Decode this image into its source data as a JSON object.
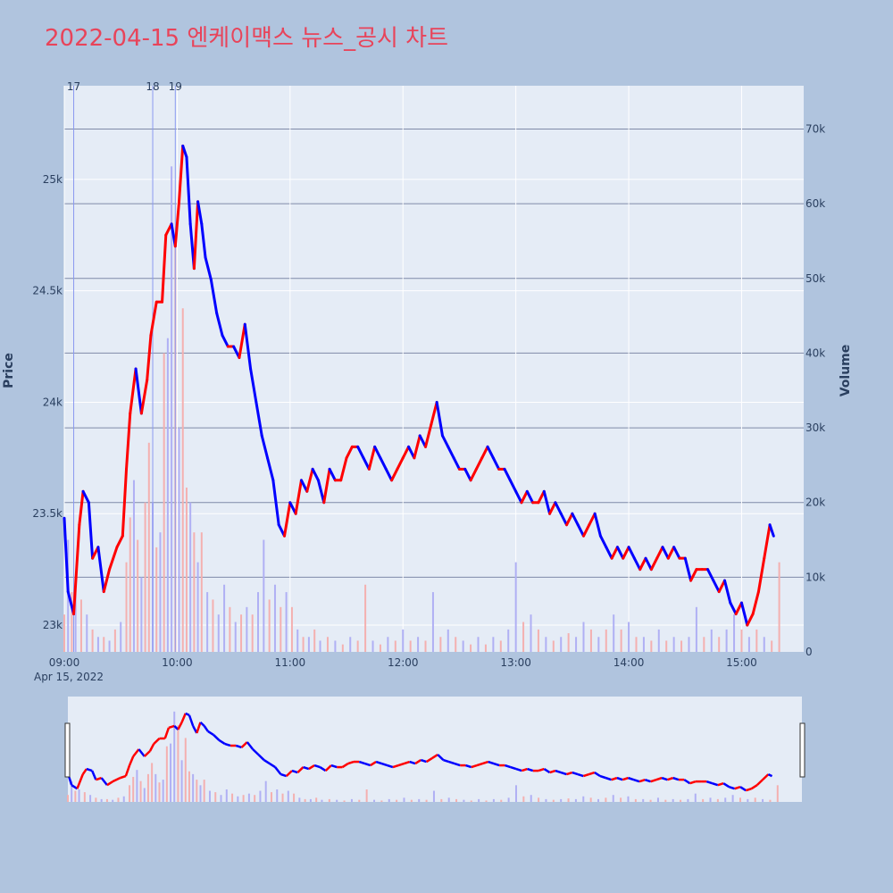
{
  "title": "2022-04-15 엔케이맥스 뉴스_공시 차트",
  "colors": {
    "background": "#b0c4de",
    "plot_bg": "#e5ecf6",
    "title": "#e8445a",
    "up": "#ff0000",
    "down": "#0000ff",
    "volume_up": "#f4b0b0",
    "volume_down": "#b0b0f4",
    "news_line": "#8a9af0",
    "volume_grid": "#7f8aa8"
  },
  "chart_data": {
    "type": "candlestick",
    "y_axis_title": "Price",
    "y2_axis_title": "Volume",
    "y_ticks": [
      23000,
      23500,
      24000,
      24500,
      25000
    ],
    "y_tick_labels": [
      "23k",
      "23.5k",
      "24k",
      "24.5k",
      "25k"
    ],
    "y_range": [
      22880,
      25420
    ],
    "y2_ticks": [
      0,
      10000,
      20000,
      30000,
      40000,
      50000,
      60000,
      70000
    ],
    "y2_tick_labels": [
      "0",
      "10k",
      "20k",
      "30k",
      "40k",
      "50k",
      "60k",
      "70k"
    ],
    "y2_range": [
      0,
      75800
    ],
    "x_ticks": [
      "09:00",
      "10:00",
      "11:00",
      "12:00",
      "13:00",
      "14:00",
      "15:00"
    ],
    "x_date_label": "Apr 15, 2022",
    "x_range_minutes": [
      540,
      933
    ],
    "news_markers": [
      {
        "label": "17",
        "time": "09:05"
      },
      {
        "label": "18",
        "time": "09:47"
      },
      {
        "label": "19",
        "time": "09:59"
      }
    ],
    "price_path": [
      [
        "09:00",
        23480
      ],
      [
        "09:02",
        23150
      ],
      [
        "09:05",
        23050
      ],
      [
        "09:08",
        23450
      ],
      [
        "09:10",
        23600
      ],
      [
        "09:13",
        23550
      ],
      [
        "09:15",
        23300
      ],
      [
        "09:18",
        23350
      ],
      [
        "09:21",
        23150
      ],
      [
        "09:24",
        23250
      ],
      [
        "09:28",
        23350
      ],
      [
        "09:31",
        23400
      ],
      [
        "09:33",
        23700
      ],
      [
        "09:35",
        23950
      ],
      [
        "09:38",
        24150
      ],
      [
        "09:41",
        23950
      ],
      [
        "09:44",
        24100
      ],
      [
        "09:46",
        24300
      ],
      [
        "09:49",
        24450
      ],
      [
        "09:52",
        24450
      ],
      [
        "09:54",
        24750
      ],
      [
        "09:57",
        24800
      ],
      [
        "09:59",
        24700
      ],
      [
        "10:01",
        24900
      ],
      [
        "10:03",
        25150
      ],
      [
        "10:05",
        25100
      ],
      [
        "10:07",
        24800
      ],
      [
        "10:09",
        24600
      ],
      [
        "10:11",
        24900
      ],
      [
        "10:13",
        24800
      ],
      [
        "10:15",
        24650
      ],
      [
        "10:18",
        24550
      ],
      [
        "10:21",
        24400
      ],
      [
        "10:24",
        24300
      ],
      [
        "10:27",
        24250
      ],
      [
        "10:30",
        24250
      ],
      [
        "10:33",
        24200
      ],
      [
        "10:36",
        24350
      ],
      [
        "10:39",
        24150
      ],
      [
        "10:42",
        24000
      ],
      [
        "10:45",
        23850
      ],
      [
        "10:48",
        23750
      ],
      [
        "10:51",
        23650
      ],
      [
        "10:54",
        23450
      ],
      [
        "10:57",
        23400
      ],
      [
        "11:00",
        23550
      ],
      [
        "11:03",
        23500
      ],
      [
        "11:06",
        23650
      ],
      [
        "11:09",
        23600
      ],
      [
        "11:12",
        23700
      ],
      [
        "11:15",
        23650
      ],
      [
        "11:18",
        23550
      ],
      [
        "11:21",
        23700
      ],
      [
        "11:24",
        23650
      ],
      [
        "11:27",
        23650
      ],
      [
        "11:30",
        23750
      ],
      [
        "11:33",
        23800
      ],
      [
        "11:36",
        23800
      ],
      [
        "11:39",
        23750
      ],
      [
        "11:42",
        23700
      ],
      [
        "11:45",
        23800
      ],
      [
        "11:48",
        23750
      ],
      [
        "11:51",
        23700
      ],
      [
        "11:54",
        23650
      ],
      [
        "11:57",
        23700
      ],
      [
        "12:00",
        23750
      ],
      [
        "12:03",
        23800
      ],
      [
        "12:06",
        23750
      ],
      [
        "12:09",
        23850
      ],
      [
        "12:12",
        23800
      ],
      [
        "12:15",
        23900
      ],
      [
        "12:18",
        24000
      ],
      [
        "12:21",
        23850
      ],
      [
        "12:24",
        23800
      ],
      [
        "12:27",
        23750
      ],
      [
        "12:30",
        23700
      ],
      [
        "12:33",
        23700
      ],
      [
        "12:36",
        23650
      ],
      [
        "12:39",
        23700
      ],
      [
        "12:42",
        23750
      ],
      [
        "12:45",
        23800
      ],
      [
        "12:48",
        23750
      ],
      [
        "12:51",
        23700
      ],
      [
        "12:54",
        23700
      ],
      [
        "12:57",
        23650
      ],
      [
        "13:00",
        23600
      ],
      [
        "13:03",
        23550
      ],
      [
        "13:06",
        23600
      ],
      [
        "13:09",
        23550
      ],
      [
        "13:12",
        23550
      ],
      [
        "13:15",
        23600
      ],
      [
        "13:18",
        23500
      ],
      [
        "13:21",
        23550
      ],
      [
        "13:24",
        23500
      ],
      [
        "13:27",
        23450
      ],
      [
        "13:30",
        23500
      ],
      [
        "13:33",
        23450
      ],
      [
        "13:36",
        23400
      ],
      [
        "13:39",
        23450
      ],
      [
        "13:42",
        23500
      ],
      [
        "13:45",
        23400
      ],
      [
        "13:48",
        23350
      ],
      [
        "13:51",
        23300
      ],
      [
        "13:54",
        23350
      ],
      [
        "13:57",
        23300
      ],
      [
        "14:00",
        23350
      ],
      [
        "14:03",
        23300
      ],
      [
        "14:06",
        23250
      ],
      [
        "14:09",
        23300
      ],
      [
        "14:12",
        23250
      ],
      [
        "14:15",
        23300
      ],
      [
        "14:18",
        23350
      ],
      [
        "14:21",
        23300
      ],
      [
        "14:24",
        23350
      ],
      [
        "14:27",
        23300
      ],
      [
        "14:30",
        23300
      ],
      [
        "14:33",
        23200
      ],
      [
        "14:36",
        23250
      ],
      [
        "14:39",
        23250
      ],
      [
        "14:42",
        23250
      ],
      [
        "14:45",
        23200
      ],
      [
        "14:48",
        23150
      ],
      [
        "14:51",
        23200
      ],
      [
        "14:54",
        23100
      ],
      [
        "14:57",
        23050
      ],
      [
        "15:00",
        23100
      ],
      [
        "15:03",
        23000
      ],
      [
        "15:06",
        23050
      ],
      [
        "15:09",
        23150
      ],
      [
        "15:12",
        23300
      ],
      [
        "15:15",
        23450
      ],
      [
        "15:17",
        23400
      ]
    ],
    "volume_bars": [
      [
        "09:00",
        5000,
        "up"
      ],
      [
        "09:02",
        15000,
        "down"
      ],
      [
        "09:04",
        8000,
        "up"
      ],
      [
        "09:06",
        9000,
        "down"
      ],
      [
        "09:09",
        7000,
        "up"
      ],
      [
        "09:12",
        5000,
        "down"
      ],
      [
        "09:15",
        3000,
        "up"
      ],
      [
        "09:18",
        2000,
        "down"
      ],
      [
        "09:21",
        2000,
        "up"
      ],
      [
        "09:24",
        1500,
        "down"
      ],
      [
        "09:27",
        3000,
        "up"
      ],
      [
        "09:30",
        4000,
        "down"
      ],
      [
        "09:33",
        12000,
        "up"
      ],
      [
        "09:35",
        18000,
        "up"
      ],
      [
        "09:37",
        23000,
        "down"
      ],
      [
        "09:39",
        15000,
        "up"
      ],
      [
        "09:41",
        10000,
        "down"
      ],
      [
        "09:43",
        20000,
        "up"
      ],
      [
        "09:45",
        28000,
        "up"
      ],
      [
        "09:47",
        20000,
        "down"
      ],
      [
        "09:49",
        14000,
        "up"
      ],
      [
        "09:51",
        16000,
        "down"
      ],
      [
        "09:53",
        40000,
        "up"
      ],
      [
        "09:55",
        42000,
        "down"
      ],
      [
        "09:57",
        65000,
        "down"
      ],
      [
        "09:59",
        55000,
        "up"
      ],
      [
        "10:01",
        30000,
        "down"
      ],
      [
        "10:03",
        46000,
        "up"
      ],
      [
        "10:05",
        22000,
        "up"
      ],
      [
        "10:07",
        20000,
        "down"
      ],
      [
        "10:09",
        16000,
        "up"
      ],
      [
        "10:11",
        12000,
        "down"
      ],
      [
        "10:13",
        16000,
        "up"
      ],
      [
        "10:16",
        8000,
        "down"
      ],
      [
        "10:19",
        7000,
        "up"
      ],
      [
        "10:22",
        5000,
        "down"
      ],
      [
        "10:25",
        9000,
        "down"
      ],
      [
        "10:28",
        6000,
        "up"
      ],
      [
        "10:31",
        4000,
        "down"
      ],
      [
        "10:34",
        5000,
        "up"
      ],
      [
        "10:37",
        6000,
        "down"
      ],
      [
        "10:40",
        5000,
        "up"
      ],
      [
        "10:43",
        8000,
        "down"
      ],
      [
        "10:46",
        15000,
        "down"
      ],
      [
        "10:49",
        7000,
        "up"
      ],
      [
        "10:52",
        9000,
        "down"
      ],
      [
        "10:55",
        6000,
        "up"
      ],
      [
        "10:58",
        8000,
        "down"
      ],
      [
        "11:01",
        6000,
        "up"
      ],
      [
        "11:04",
        3000,
        "down"
      ],
      [
        "11:07",
        2000,
        "up"
      ],
      [
        "11:10",
        2000,
        "down"
      ],
      [
        "11:13",
        3000,
        "up"
      ],
      [
        "11:16",
        1500,
        "down"
      ],
      [
        "11:20",
        2000,
        "up"
      ],
      [
        "11:24",
        1500,
        "down"
      ],
      [
        "11:28",
        1000,
        "up"
      ],
      [
        "11:32",
        2000,
        "down"
      ],
      [
        "11:36",
        1500,
        "up"
      ],
      [
        "11:40",
        9000,
        "up"
      ],
      [
        "11:44",
        1500,
        "down"
      ],
      [
        "11:48",
        1000,
        "up"
      ],
      [
        "11:52",
        2000,
        "down"
      ],
      [
        "11:56",
        1500,
        "up"
      ],
      [
        "12:00",
        3000,
        "down"
      ],
      [
        "12:04",
        1500,
        "up"
      ],
      [
        "12:08",
        2000,
        "down"
      ],
      [
        "12:12",
        1500,
        "up"
      ],
      [
        "12:16",
        8000,
        "down"
      ],
      [
        "12:20",
        2000,
        "up"
      ],
      [
        "12:24",
        3000,
        "down"
      ],
      [
        "12:28",
        2000,
        "up"
      ],
      [
        "12:32",
        1500,
        "down"
      ],
      [
        "12:36",
        1000,
        "up"
      ],
      [
        "12:40",
        2000,
        "down"
      ],
      [
        "12:44",
        1000,
        "up"
      ],
      [
        "12:48",
        2000,
        "down"
      ],
      [
        "12:52",
        1500,
        "up"
      ],
      [
        "12:56",
        3000,
        "down"
      ],
      [
        "13:00",
        12000,
        "down"
      ],
      [
        "13:04",
        4000,
        "up"
      ],
      [
        "13:08",
        5000,
        "down"
      ],
      [
        "13:12",
        3000,
        "up"
      ],
      [
        "13:16",
        2000,
        "down"
      ],
      [
        "13:20",
        1500,
        "up"
      ],
      [
        "13:24",
        2000,
        "down"
      ],
      [
        "13:28",
        2500,
        "up"
      ],
      [
        "13:32",
        2000,
        "down"
      ],
      [
        "13:36",
        4000,
        "down"
      ],
      [
        "13:40",
        3000,
        "up"
      ],
      [
        "13:44",
        2000,
        "down"
      ],
      [
        "13:48",
        3000,
        "up"
      ],
      [
        "13:52",
        5000,
        "down"
      ],
      [
        "13:56",
        3000,
        "up"
      ],
      [
        "14:00",
        4000,
        "down"
      ],
      [
        "14:04",
        2000,
        "up"
      ],
      [
        "14:08",
        2000,
        "down"
      ],
      [
        "14:12",
        1500,
        "up"
      ],
      [
        "14:16",
        3000,
        "down"
      ],
      [
        "14:20",
        1500,
        "up"
      ],
      [
        "14:24",
        2000,
        "down"
      ],
      [
        "14:28",
        1500,
        "up"
      ],
      [
        "14:32",
        2000,
        "down"
      ],
      [
        "14:36",
        6000,
        "down"
      ],
      [
        "14:40",
        2000,
        "up"
      ],
      [
        "14:44",
        3000,
        "down"
      ],
      [
        "14:48",
        2000,
        "up"
      ],
      [
        "14:52",
        3000,
        "down"
      ],
      [
        "14:56",
        5000,
        "down"
      ],
      [
        "15:00",
        3000,
        "up"
      ],
      [
        "15:04",
        2000,
        "down"
      ],
      [
        "15:08",
        3000,
        "up"
      ],
      [
        "15:12",
        2000,
        "down"
      ],
      [
        "15:16",
        1500,
        "up"
      ],
      [
        "15:20",
        12000,
        "up"
      ]
    ]
  }
}
